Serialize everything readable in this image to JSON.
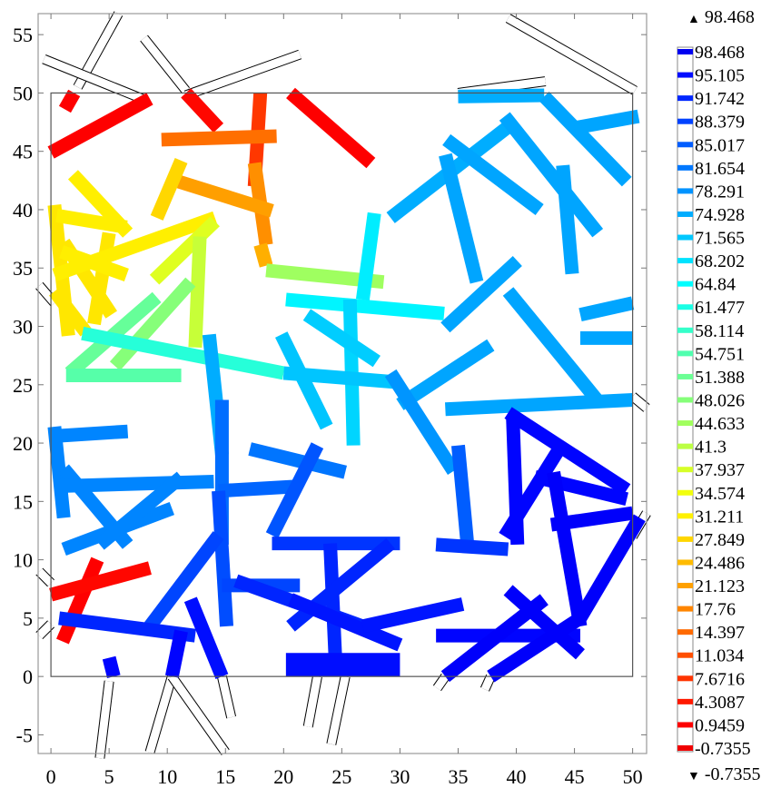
{
  "chart_data": {
    "type": "heatmap",
    "title": "",
    "xlabel": "",
    "ylabel": "",
    "xlim": [
      -1.1,
      51.2
    ],
    "ylim": [
      -6.6,
      56.8
    ],
    "domain_box": {
      "x": [
        0,
        50
      ],
      "y": [
        0,
        50
      ]
    },
    "grid": false,
    "x_ticks": [
      "0",
      "5",
      "10",
      "15",
      "20",
      "25",
      "30",
      "35",
      "40",
      "45",
      "50"
    ],
    "y_ticks": [
      "-5",
      "0",
      "5",
      "10",
      "15",
      "20",
      "25",
      "30",
      "35",
      "40",
      "45",
      "50",
      "55"
    ],
    "colormap": "jet (reversed: low = red, high = blue)",
    "color_range": [
      -0.7355,
      98.468
    ],
    "max_label": "98.468",
    "min_label": "-0.7355",
    "max_marker": "▲",
    "min_marker": "▼",
    "legend_levels": [
      "98.468",
      "95.105",
      "91.742",
      "88.379",
      "85.017",
      "81.654",
      "78.291",
      "74.928",
      "71.565",
      "68.202",
      "64.84",
      "61.477",
      "58.114",
      "54.751",
      "51.388",
      "48.026",
      "44.633",
      "41.3",
      "37.937",
      "34.574",
      "31.211",
      "27.849",
      "24.486",
      "21.123",
      "17.76",
      "14.397",
      "11.034",
      "7.6716",
      "4.3087",
      "0.9459",
      "-0.7355"
    ],
    "legend_placement": "right",
    "fractures": [
      {
        "p": [
          [
            0,
            44.9
          ],
          [
            8.5,
            49.5
          ]
        ],
        "v": 1
      },
      {
        "p": [
          [
            1.2,
            48.6
          ],
          [
            2,
            50
          ]
        ],
        "v": 1
      },
      {
        "p": [
          [
            11.6,
            50
          ],
          [
            14.4,
            47
          ]
        ],
        "v": 2
      },
      {
        "p": [
          [
            20.6,
            50
          ],
          [
            27.5,
            44
          ]
        ],
        "v": 1
      },
      {
        "p": [
          [
            18,
            50
          ],
          [
            17.5,
            42
          ]
        ],
        "v": 8
      },
      {
        "p": [
          [
            9.5,
            46
          ],
          [
            19.4,
            46.3
          ]
        ],
        "v": 15
      },
      {
        "p": [
          [
            17.5,
            44
          ],
          [
            18.5,
            37
          ]
        ],
        "v": 19
      },
      {
        "p": [
          [
            11,
            42.4
          ],
          [
            19,
            39.9
          ]
        ],
        "v": 21
      },
      {
        "p": [
          [
            0.3,
            40.4
          ],
          [
            1.5,
            29.2
          ]
        ],
        "v": 30
      },
      {
        "p": [
          [
            1.9,
            43
          ],
          [
            6.6,
            38
          ]
        ],
        "v": 31
      },
      {
        "p": [
          [
            0.5,
            39.5
          ],
          [
            6.5,
            38.5
          ]
        ],
        "v": 31
      },
      {
        "p": [
          [
            11.2,
            44.2
          ],
          [
            9.1,
            39.3
          ]
        ],
        "v": 28
      },
      {
        "p": [
          [
            0.3,
            34.4
          ],
          [
            14.1,
            39.3
          ]
        ],
        "v": 31
      },
      {
        "p": [
          [
            0.9,
            36.4
          ],
          [
            6.5,
            34.4
          ]
        ],
        "v": 31
      },
      {
        "p": [
          [
            5,
            38
          ],
          [
            3.7,
            30.2
          ]
        ],
        "v": 30
      },
      {
        "p": [
          [
            1.1,
            37.2
          ],
          [
            5.2,
            31
          ]
        ],
        "v": 30
      },
      {
        "p": [
          [
            0.3,
            33
          ],
          [
            3,
            29.5
          ]
        ],
        "v": 30
      },
      {
        "p": [
          [
            8.9,
            34
          ],
          [
            14.1,
            39
          ]
        ],
        "v": 37
      },
      {
        "p": [
          [
            12.8,
            37.7
          ],
          [
            12.4,
            28.2
          ]
        ],
        "v": 40
      },
      {
        "p": [
          [
            18,
            37
          ],
          [
            18.5,
            35.2
          ]
        ],
        "v": 23
      },
      {
        "p": [
          [
            18.5,
            34.8
          ],
          [
            28.6,
            33.8
          ]
        ],
        "v": 45
      },
      {
        "p": [
          [
            12,
            33.8
          ],
          [
            5.5,
            26.6
          ]
        ],
        "v": 48
      },
      {
        "p": [
          [
            9.1,
            32.5
          ],
          [
            1.6,
            26
          ]
        ],
        "v": 52
      },
      {
        "p": [
          [
            1.3,
            25.8
          ],
          [
            11.2,
            25.8
          ]
        ],
        "v": 54
      },
      {
        "p": [
          [
            2.7,
            29.4
          ],
          [
            20,
            26
          ]
        ],
        "v": 60
      },
      {
        "p": [
          [
            20,
            26
          ],
          [
            30,
            25.2
          ]
        ],
        "v": 72
      },
      {
        "p": [
          [
            20.2,
            32.3
          ],
          [
            33.8,
            31.1
          ]
        ],
        "v": 66
      },
      {
        "p": [
          [
            27.8,
            39.7
          ],
          [
            26.8,
            32.3
          ]
        ],
        "v": 67
      },
      {
        "p": [
          [
            19.8,
            29.3
          ],
          [
            23.7,
            21.4
          ]
        ],
        "v": 72
      },
      {
        "p": [
          [
            25.7,
            32.3
          ],
          [
            26,
            19.8
          ]
        ],
        "v": 70
      },
      {
        "p": [
          [
            22,
            31
          ],
          [
            28,
            27
          ]
        ],
        "v": 71
      },
      {
        "p": [
          [
            13.6,
            29.3
          ],
          [
            14.7,
            19
          ]
        ],
        "v": 75
      },
      {
        "p": [
          [
            29.2,
            39.3
          ],
          [
            39.3,
            47.1
          ]
        ],
        "v": 75
      },
      {
        "p": [
          [
            35,
            49.7
          ],
          [
            42.4,
            49.8
          ]
        ],
        "v": 75
      },
      {
        "p": [
          [
            33.9,
            44.7
          ],
          [
            36.6,
            33.8
          ]
        ],
        "v": 76
      },
      {
        "p": [
          [
            42.4,
            49.7
          ],
          [
            49.5,
            42.4
          ]
        ],
        "v": 76
      },
      {
        "p": [
          [
            44,
            43.8
          ],
          [
            44.8,
            34.5
          ]
        ],
        "v": 76
      },
      {
        "p": [
          [
            34,
            46
          ],
          [
            42,
            40
          ]
        ],
        "v": 76
      },
      {
        "p": [
          [
            39,
            48
          ],
          [
            47,
            38
          ]
        ],
        "v": 76
      },
      {
        "p": [
          [
            45,
            47
          ],
          [
            50.5,
            48
          ]
        ],
        "v": 76
      },
      {
        "p": [
          [
            39.3,
            33
          ],
          [
            47.1,
            23.5
          ]
        ],
        "v": 76
      },
      {
        "p": [
          [
            45.5,
            29
          ],
          [
            50,
            29
          ]
        ],
        "v": 76
      },
      {
        "p": [
          [
            45.5,
            31
          ],
          [
            50,
            32
          ]
        ],
        "v": 76
      },
      {
        "p": [
          [
            33.9,
            29.9
          ],
          [
            40.1,
            35.6
          ]
        ],
        "v": 76
      },
      {
        "p": [
          [
            30,
            23.3
          ],
          [
            37.8,
            28.4
          ]
        ],
        "v": 76
      },
      {
        "p": [
          [
            33.9,
            22.9
          ],
          [
            50,
            23.7
          ]
        ],
        "v": 76
      },
      {
        "p": [
          [
            29.2,
            26
          ],
          [
            34.6,
            17.6
          ]
        ],
        "v": 78
      },
      {
        "p": [
          [
            0.3,
            21.4
          ],
          [
            1.1,
            13.6
          ]
        ],
        "v": 80
      },
      {
        "p": [
          [
            0.3,
            20.6
          ],
          [
            6.6,
            21
          ]
        ],
        "v": 80
      },
      {
        "p": [
          [
            1.1,
            17.8
          ],
          [
            6.6,
            11.3
          ]
        ],
        "v": 80
      },
      {
        "p": [
          [
            0.3,
            16.3
          ],
          [
            14,
            16.7
          ]
        ],
        "v": 80
      },
      {
        "p": [
          [
            1.1,
            10.9
          ],
          [
            10.4,
            14.4
          ]
        ],
        "v": 80
      },
      {
        "p": [
          [
            4.2,
            11.3
          ],
          [
            11.2,
            17.1
          ]
        ],
        "v": 80
      },
      {
        "p": [
          [
            14.7,
            23.7
          ],
          [
            14.7,
            11.3
          ]
        ],
        "v": 83
      },
      {
        "p": [
          [
            17.1,
            19.5
          ],
          [
            25.3,
            17.5
          ]
        ],
        "v": 82
      },
      {
        "p": [
          [
            14.4,
            15.9
          ],
          [
            21.4,
            16.3
          ]
        ],
        "v": 84
      },
      {
        "p": [
          [
            14.4,
            15.9
          ],
          [
            15.1,
            4.3
          ]
        ],
        "v": 87
      },
      {
        "p": [
          [
            22.9,
            19.8
          ],
          [
            19,
            12.1
          ]
        ],
        "v": 86
      },
      {
        "p": [
          [
            19,
            11.4
          ],
          [
            30,
            11.4
          ]
        ],
        "v": 90
      },
      {
        "p": [
          [
            24,
            11.4
          ],
          [
            24.5,
            0.4
          ]
        ],
        "v": 92
      },
      {
        "p": [
          [
            29.2,
            11.4
          ],
          [
            20.6,
            4.3
          ]
        ],
        "v": 92
      },
      {
        "p": [
          [
            8.5,
            4.3
          ],
          [
            14.4,
            12.1
          ]
        ],
        "v": 88
      },
      {
        "p": [
          [
            0.7,
            5
          ],
          [
            12.4,
            3.5
          ]
        ],
        "v": 92
      },
      {
        "p": [
          [
            12,
            6.6
          ],
          [
            14.7,
            0
          ]
        ],
        "v": 95
      },
      {
        "p": [
          [
            11.2,
            3.9
          ],
          [
            10.4,
            0
          ]
        ],
        "v": 96
      },
      {
        "p": [
          [
            5,
            1.6
          ],
          [
            5.4,
            0
          ]
        ],
        "v": 96
      },
      {
        "p": [
          [
            14.7,
            7.8
          ],
          [
            21.4,
            7.8
          ]
        ],
        "v": 88
      },
      {
        "p": [
          [
            15.9,
            8.2
          ],
          [
            26.8,
            4.3
          ]
        ],
        "v": 92
      },
      {
        "p": [
          [
            20.6,
            6.6
          ],
          [
            30,
            2.7
          ]
        ],
        "v": 94
      },
      {
        "p": [
          [
            26.8,
            4.3
          ],
          [
            35.4,
            6.2
          ]
        ],
        "v": 94
      },
      {
        "p": [
          [
            33.1,
            3.5
          ],
          [
            45.5,
            3.5
          ]
        ],
        "v": 96
      },
      {
        "p": [
          [
            33.9,
            0
          ],
          [
            42.4,
            6.6
          ]
        ],
        "v": 97
      },
      {
        "p": [
          [
            37.8,
            0
          ],
          [
            45.5,
            5
          ]
        ],
        "v": 97
      },
      {
        "p": [
          [
            39.3,
            7.4
          ],
          [
            45.5,
            1.9
          ]
        ],
        "v": 97
      },
      {
        "p": [
          [
            33.1,
            11.3
          ],
          [
            39.3,
            10.9
          ]
        ],
        "v": 90
      },
      {
        "p": [
          [
            35,
            19.8
          ],
          [
            35.8,
            11.3
          ]
        ],
        "v": 85
      },
      {
        "p": [
          [
            39.3,
            22.6
          ],
          [
            49.5,
            16
          ]
        ],
        "v": 96
      },
      {
        "p": [
          [
            39.7,
            22.2
          ],
          [
            40.1,
            11.3
          ]
        ],
        "v": 96
      },
      {
        "p": [
          [
            39,
            12
          ],
          [
            44,
            20
          ]
        ],
        "v": 96
      },
      {
        "p": [
          [
            41.6,
            17.1
          ],
          [
            49.5,
            15.2
          ]
        ],
        "v": 96
      },
      {
        "p": [
          [
            43.2,
            17.5
          ],
          [
            45.5,
            4.3
          ]
        ],
        "v": 97
      },
      {
        "p": [
          [
            45.5,
            5
          ],
          [
            50.6,
            13.6
          ]
        ],
        "v": 97
      },
      {
        "p": [
          [
            43,
            13
          ],
          [
            50,
            14
          ]
        ],
        "v": 97
      },
      {
        "p": [
          [
            1,
            3
          ],
          [
            4,
            10
          ]
        ],
        "v": 1
      },
      {
        "p": [
          [
            0,
            7
          ],
          [
            8.5,
            9.3
          ]
        ],
        "v": 2
      },
      {
        "p": [
          [
            20.2,
            1
          ],
          [
            30,
            1
          ]
        ],
        "v": 95,
        "thick": true
      },
      {
        "p": [
          [
            2.3,
            50.5
          ],
          [
            5.8,
            56.8
          ]
        ],
        "v": null
      },
      {
        "p": [
          [
            -0.6,
            52.9
          ],
          [
            8.1,
            49.4
          ]
        ],
        "v": null
      },
      {
        "p": [
          [
            8,
            54.7
          ],
          [
            11.6,
            50.2
          ]
        ],
        "v": null
      },
      {
        "p": [
          [
            11.6,
            49.8
          ],
          [
            21.4,
            53.3
          ]
        ],
        "v": null
      },
      {
        "p": [
          [
            39.3,
            56.4
          ],
          [
            50.2,
            50.2
          ]
        ],
        "v": null
      },
      {
        "p": [
          [
            35,
            50
          ],
          [
            42.5,
            51
          ]
        ],
        "v": null
      },
      {
        "p": [
          [
            5,
            -0.4
          ],
          [
            4.2,
            -7
          ]
        ],
        "v": null
      },
      {
        "p": [
          [
            10.4,
            0
          ],
          [
            8.5,
            -6.5
          ]
        ],
        "v": null
      },
      {
        "p": [
          [
            10.4,
            0
          ],
          [
            15,
            -6.5
          ]
        ],
        "v": null
      },
      {
        "p": [
          [
            14.7,
            0
          ],
          [
            15.5,
            -3.5
          ]
        ],
        "v": null
      },
      {
        "p": [
          [
            22.9,
            0
          ],
          [
            22.1,
            -4.3
          ]
        ],
        "v": null
      },
      {
        "p": [
          [
            25.3,
            0
          ],
          [
            24.1,
            -5.8
          ]
        ],
        "v": null
      },
      {
        "p": [
          [
            33.9,
            0
          ],
          [
            33.2,
            -1
          ]
        ],
        "v": null
      },
      {
        "p": [
          [
            37.8,
            0
          ],
          [
            37.3,
            -1.1
          ]
        ],
        "v": null
      },
      {
        "p": [
          [
            -1,
            9
          ],
          [
            0,
            8
          ]
        ],
        "v": null
      },
      {
        "p": [
          [
            -1,
            3.5
          ],
          [
            0,
            4.5
          ]
        ],
        "v": null
      },
      {
        "p": [
          [
            -1,
            33.5
          ],
          [
            0.3,
            32
          ]
        ],
        "v": null
      },
      {
        "p": [
          [
            50,
            24
          ],
          [
            51.2,
            23
          ]
        ],
        "v": null
      },
      {
        "p": [
          [
            50,
            12
          ],
          [
            51.2,
            14
          ]
        ],
        "v": null
      }
    ]
  }
}
